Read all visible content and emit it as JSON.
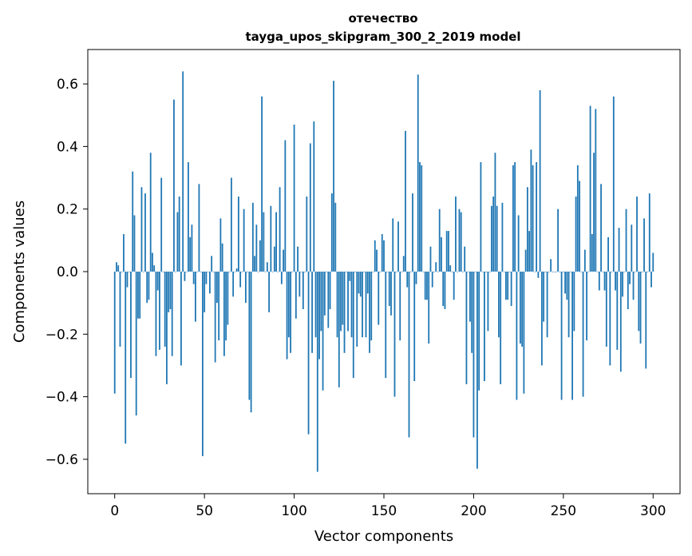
{
  "chart_data": {
    "type": "bar",
    "title": [
      "отечество",
      "tayga_upos_skipgram_300_2_2019 model"
    ],
    "xlabel": "Vector components",
    "ylabel": "Components values",
    "xlim": [
      -15,
      315
    ],
    "ylim": [
      -0.71,
      0.71
    ],
    "xticks": [
      0,
      50,
      100,
      150,
      200,
      250,
      300
    ],
    "xtick_labels": [
      "0",
      "50",
      "100",
      "150",
      "200",
      "250",
      "300"
    ],
    "yticks": [
      -0.6,
      -0.4,
      -0.2,
      0.0,
      0.2,
      0.4,
      0.6
    ],
    "ytick_labels": [
      "−0.6",
      "−0.4",
      "−0.2",
      "0.0",
      "0.2",
      "0.4",
      "0.6"
    ],
    "bar_color": "#1f77b4",
    "values": [
      -0.39,
      0.03,
      0.02,
      -0.24,
      0.0,
      0.12,
      -0.55,
      -0.05,
      0.0,
      -0.34,
      0.32,
      0.18,
      -0.46,
      -0.15,
      -0.15,
      0.27,
      0.0,
      0.25,
      -0.1,
      -0.09,
      0.38,
      0.06,
      0.02,
      -0.27,
      -0.06,
      -0.25,
      0.3,
      0.0,
      -0.24,
      -0.36,
      -0.13,
      -0.12,
      -0.27,
      0.55,
      0.0,
      0.19,
      0.24,
      -0.3,
      0.64,
      -0.03,
      0.0,
      0.35,
      0.11,
      0.15,
      -0.04,
      -0.16,
      0.0,
      0.28,
      0.0,
      -0.59,
      -0.13,
      -0.04,
      0.0,
      -0.07,
      0.05,
      0.0,
      -0.29,
      -0.1,
      -0.22,
      0.17,
      0.09,
      -0.27,
      -0.22,
      -0.17,
      0.0,
      0.3,
      -0.08,
      0.0,
      0.01,
      0.24,
      -0.05,
      0.0,
      0.2,
      -0.1,
      0.0,
      -0.41,
      -0.45,
      0.22,
      0.05,
      0.15,
      0.0,
      0.1,
      0.56,
      0.19,
      0.0,
      0.03,
      -0.13,
      0.21,
      0.0,
      0.08,
      0.19,
      0.0,
      0.27,
      -0.04,
      0.07,
      0.42,
      -0.28,
      -0.21,
      -0.26,
      0.0,
      0.47,
      -0.15,
      0.08,
      -0.08,
      0.0,
      -0.12,
      0.0,
      0.24,
      -0.52,
      0.41,
      -0.26,
      0.48,
      -0.21,
      -0.64,
      -0.28,
      -0.19,
      -0.38,
      -0.14,
      0.0,
      -0.18,
      -0.12,
      0.25,
      0.61,
      0.22,
      -0.21,
      -0.37,
      -0.19,
      -0.17,
      -0.26,
      0.0,
      -0.19,
      -0.03,
      -0.21,
      -0.34,
      0.0,
      -0.24,
      -0.07,
      -0.08,
      -0.21,
      0.0,
      -0.21,
      -0.07,
      -0.26,
      -0.22,
      0.0,
      0.1,
      0.07,
      -0.17,
      0.0,
      0.12,
      0.1,
      -0.34,
      0.0,
      -0.11,
      -0.14,
      0.17,
      -0.4,
      0.0,
      0.16,
      -0.22,
      0.0,
      0.05,
      0.45,
      -0.05,
      -0.53,
      0.0,
      0.25,
      -0.35,
      -0.04,
      0.63,
      0.35,
      0.34,
      0.0,
      -0.09,
      -0.09,
      -0.23,
      0.08,
      -0.05,
      0.0,
      0.03,
      0.0,
      0.2,
      0.11,
      -0.11,
      -0.12,
      0.13,
      0.13,
      0.02,
      0.0,
      -0.09,
      0.24,
      0.0,
      0.2,
      0.19,
      0.0,
      0.08,
      -0.36,
      0.0,
      -0.16,
      -0.26,
      -0.53,
      0.0,
      -0.63,
      -0.38,
      0.35,
      0.0,
      -0.35,
      0.0,
      -0.19,
      0.0,
      0.21,
      0.24,
      0.38,
      0.21,
      -0.21,
      -0.36,
      0.22,
      0.0,
      -0.09,
      -0.09,
      0.0,
      -0.11,
      0.34,
      0.35,
      -0.41,
      0.18,
      -0.23,
      -0.24,
      -0.39,
      0.07,
      0.27,
      0.13,
      0.39,
      0.34,
      0.0,
      0.35,
      -0.02,
      0.58,
      -0.3,
      -0.16,
      0.0,
      -0.21,
      0.0,
      0.04,
      0.0,
      0.0,
      0.0,
      0.2,
      0.0,
      -0.41,
      0.0,
      -0.07,
      -0.09,
      -0.21,
      0.0,
      -0.41,
      -0.19,
      0.24,
      0.34,
      0.29,
      0.0,
      -0.4,
      0.07,
      -0.22,
      0.0,
      0.53,
      0.12,
      0.38,
      0.52,
      0.0,
      -0.06,
      0.28,
      0.0,
      -0.06,
      -0.24,
      0.11,
      -0.3,
      0.0,
      0.56,
      -0.06,
      -0.25,
      0.14,
      -0.32,
      -0.08,
      0.0,
      0.2,
      -0.12,
      -0.04,
      0.15,
      -0.09,
      0.0,
      0.24,
      -0.19,
      -0.23,
      0.0,
      0.17,
      -0.31,
      0.0,
      0.25,
      -0.05,
      0.06
    ]
  }
}
